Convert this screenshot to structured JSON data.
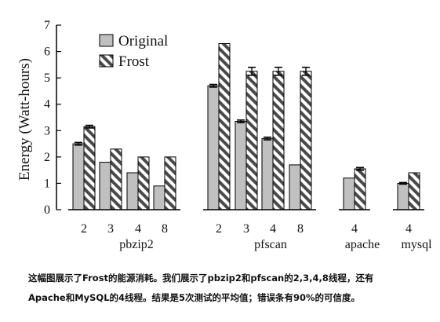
{
  "chart_data": {
    "type": "bar",
    "ylabel": "Energy (Watt-hours)",
    "ylim": [
      0,
      7
    ],
    "yticks": [
      "0",
      "1",
      "2",
      "3",
      "4",
      "5",
      "6",
      "7"
    ],
    "legend": {
      "placement": "top-left",
      "entries": [
        {
          "name": "Original",
          "pattern": "solid-gray"
        },
        {
          "name": "Frost",
          "pattern": "diagonal-hatch"
        }
      ]
    },
    "colors": {
      "original_fill": "#c0c0c0",
      "frost_fill": "#ffffff",
      "frost_stripe": "#4a4a4a",
      "axis": "#000000"
    },
    "groups": [
      {
        "name": "pbzip2",
        "threads": [
          "2",
          "3",
          "4",
          "8"
        ],
        "original": [
          2.5,
          1.8,
          1.4,
          0.9
        ],
        "frost": [
          3.15,
          2.3,
          2.0,
          2.0
        ]
      },
      {
        "name": "pfscan",
        "threads": [
          "2",
          "3",
          "4",
          "8"
        ],
        "original": [
          4.7,
          3.35,
          2.7,
          1.7
        ],
        "frost": [
          6.3,
          5.25,
          5.25,
          5.25
        ]
      },
      {
        "name": "apache",
        "threads": [
          "4"
        ],
        "original": [
          1.2
        ],
        "frost": [
          1.55
        ]
      },
      {
        "name": "mysql",
        "threads": [
          "4"
        ],
        "original": [
          1.0
        ],
        "frost": [
          1.4
        ]
      }
    ],
    "error_bars": {
      "pbzip2": {
        "original": [
          0.05,
          0,
          0,
          0
        ],
        "frost": [
          0.05,
          0,
          0,
          0
        ]
      },
      "pfscan": {
        "original": [
          0.05,
          0.05,
          0.05,
          0
        ],
        "frost": [
          0,
          0.15,
          0.15,
          0.15
        ]
      },
      "apache": {
        "original": [
          0
        ],
        "frost": [
          0.05
        ]
      },
      "mysql": {
        "original": [
          0.03
        ],
        "frost": [
          0
        ]
      }
    }
  },
  "caption": {
    "line1": "这幅图展示了Frost的能源消耗。我们展示了pbzip2和pfscan的2,3,4,8线程，还有",
    "line2": "Apache和MySQL的4线程。结果是5次测试的平均值；错误条有90%的可信度。"
  }
}
